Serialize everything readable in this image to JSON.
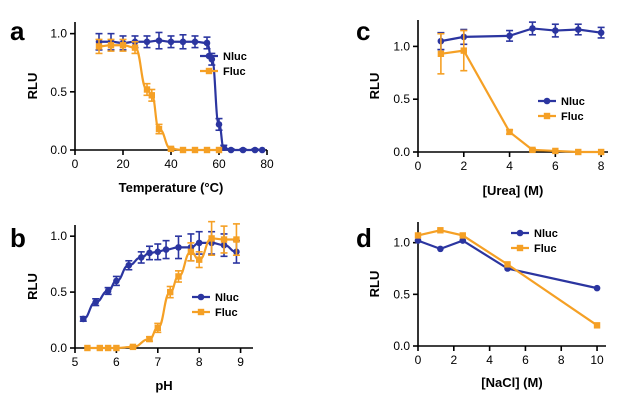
{
  "colors": {
    "nluc": "#2b35a0",
    "fluc": "#f5a025"
  },
  "chart_data": [
    {
      "panel": "a",
      "type": "scatter",
      "xlabel": "Temperature (°C)",
      "ylabel": "RLU",
      "xlim": [
        0,
        80
      ],
      "ylim": [
        0,
        1.1
      ],
      "xticks": [
        "0",
        "20",
        "40",
        "60",
        "80"
      ],
      "yticks": [
        "0.0",
        "0.5",
        "1.0"
      ],
      "legend": "right-middle",
      "series": [
        {
          "name": "Nluc",
          "x": [
            10,
            15,
            20,
            25,
            30,
            35,
            40,
            45,
            50,
            55,
            57,
            60,
            62,
            65,
            70,
            75,
            78
          ],
          "y": [
            0.93,
            0.93,
            0.92,
            0.93,
            0.93,
            0.94,
            0.93,
            0.93,
            0.93,
            0.92,
            0.78,
            0.22,
            0.02,
            0.0,
            0.0,
            0.0,
            0.0
          ],
          "err": [
            0.07,
            0.07,
            0.06,
            0.05,
            0.05,
            0.07,
            0.05,
            0.06,
            0.05,
            0.05,
            0.05,
            0.05,
            0.02,
            0.01,
            0.01,
            0.01,
            0.0
          ]
        },
        {
          "name": "Fluc",
          "x": [
            10,
            15,
            20,
            25,
            30,
            32,
            35,
            40,
            45,
            50,
            55,
            60
          ],
          "y": [
            0.89,
            0.9,
            0.9,
            0.88,
            0.52,
            0.47,
            0.18,
            0.01,
            0.0,
            0.0,
            0.0,
            0.0
          ],
          "err": [
            0.06,
            0.05,
            0.05,
            0.05,
            0.05,
            0.05,
            0.04,
            0.01,
            0.0,
            0.0,
            0.0,
            0.0
          ]
        }
      ]
    },
    {
      "panel": "b",
      "type": "scatter",
      "xlabel": "pH",
      "ylabel": "RLU",
      "xlim": [
        5,
        9.3
      ],
      "ylim": [
        0,
        1.1
      ],
      "xticks": [
        "5",
        "6",
        "7",
        "8",
        "9"
      ],
      "yticks": [
        "0.0",
        "0.5",
        "1.0"
      ],
      "legend": "right-middle",
      "series": [
        {
          "name": "Nluc",
          "x": [
            5.2,
            5.5,
            5.8,
            6.0,
            6.3,
            6.6,
            6.8,
            7.0,
            7.2,
            7.5,
            7.8,
            8.0,
            8.3,
            8.6,
            8.9
          ],
          "y": [
            0.26,
            0.41,
            0.51,
            0.6,
            0.74,
            0.81,
            0.85,
            0.86,
            0.88,
            0.9,
            0.9,
            0.94,
            0.94,
            0.92,
            0.86
          ],
          "err": [
            0.02,
            0.03,
            0.03,
            0.04,
            0.04,
            0.05,
            0.06,
            0.07,
            0.08,
            0.1,
            0.12,
            0.1,
            0.1,
            0.1,
            0.1
          ]
        },
        {
          "name": "Fluc",
          "x": [
            5.3,
            5.6,
            5.8,
            6.0,
            6.4,
            6.8,
            7.0,
            7.3,
            7.5,
            7.8,
            8.0,
            8.3,
            8.6,
            8.9
          ],
          "y": [
            0.0,
            0.0,
            0.0,
            0.0,
            0.01,
            0.08,
            0.18,
            0.5,
            0.64,
            0.86,
            0.79,
            0.98,
            0.97,
            0.97
          ],
          "err": [
            0.0,
            0.0,
            0.0,
            0.0,
            0.01,
            0.02,
            0.04,
            0.05,
            0.05,
            0.08,
            0.07,
            0.15,
            0.12,
            0.14
          ]
        }
      ]
    },
    {
      "panel": "c",
      "type": "line",
      "xlabel": "[Urea] (M)",
      "ylabel": "RLU",
      "xlim": [
        0,
        8.3
      ],
      "ylim": [
        0,
        1.25
      ],
      "xticks": [
        "0",
        "2",
        "4",
        "6",
        "8"
      ],
      "yticks": [
        "0.0",
        "0.5",
        "1.0"
      ],
      "legend": "right-middle",
      "series": [
        {
          "name": "Nluc",
          "x": [
            1,
            2,
            4,
            5,
            6,
            7,
            8
          ],
          "y": [
            1.05,
            1.09,
            1.1,
            1.17,
            1.15,
            1.16,
            1.13
          ],
          "err": [
            0.08,
            0.07,
            0.05,
            0.06,
            0.06,
            0.05,
            0.05
          ]
        },
        {
          "name": "Fluc",
          "x": [
            1,
            2,
            4,
            5,
            6,
            7,
            8
          ],
          "y": [
            0.93,
            0.96,
            0.19,
            0.02,
            0.01,
            0.0,
            0.0
          ],
          "err": [
            0.19,
            0.19,
            0.02,
            0.01,
            0.0,
            0.0,
            0.0
          ]
        }
      ]
    },
    {
      "panel": "d",
      "type": "line",
      "xlabel": "[NaCl] (M)",
      "ylabel": "RLU",
      "xlim": [
        0,
        10.5
      ],
      "ylim": [
        0,
        1.2
      ],
      "xticks": [
        "0",
        "2",
        "4",
        "6",
        "8",
        "10"
      ],
      "yticks": [
        "0.0",
        "0.5",
        "1.0"
      ],
      "legend": "top-right",
      "series": [
        {
          "name": "Nluc",
          "x": [
            0,
            1.25,
            2.5,
            5,
            10
          ],
          "y": [
            1.02,
            0.94,
            1.02,
            0.75,
            0.56
          ]
        },
        {
          "name": "Fluc",
          "x": [
            0,
            1.25,
            2.5,
            5,
            10
          ],
          "y": [
            1.07,
            1.12,
            1.07,
            0.79,
            0.2
          ]
        }
      ]
    }
  ]
}
